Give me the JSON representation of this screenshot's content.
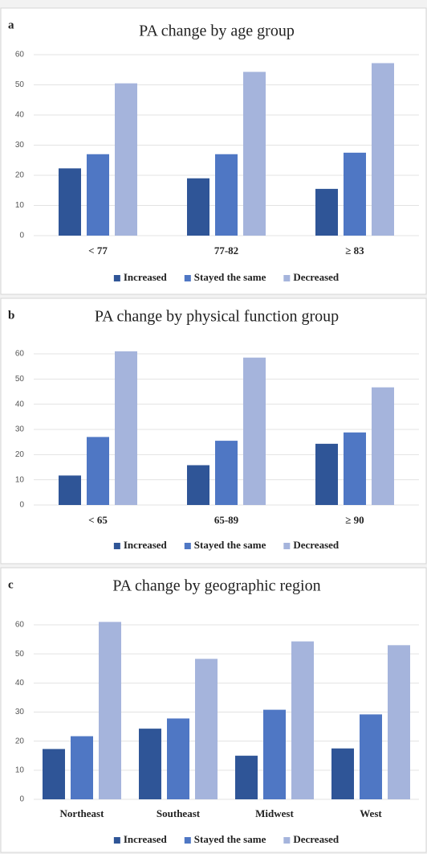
{
  "chart_data": [
    {
      "type": "bar",
      "panel_label": "a",
      "title": "PA change by age group",
      "categories": [
        "< 77",
        "77-82",
        "≥ 83"
      ],
      "series": [
        {
          "name": "Increased",
          "color": "#2f5597",
          "values": [
            22.3,
            19,
            15.5
          ]
        },
        {
          "name": "Stayed the same",
          "color": "#4f77c4",
          "values": [
            27,
            27,
            27.5
          ]
        },
        {
          "name": "Decreased",
          "color": "#a5b4dc",
          "values": [
            50.5,
            54.3,
            57.2
          ]
        }
      ],
      "ylim": [
        0,
        60
      ],
      "yticks": [
        0,
        10,
        20,
        30,
        40,
        50,
        60
      ],
      "legend": "bottom"
    },
    {
      "type": "bar",
      "panel_label": "b",
      "title": "PA change by physical function group",
      "categories": [
        "< 65",
        "65-89",
        "≥ 90"
      ],
      "series": [
        {
          "name": "Increased",
          "color": "#2f5597",
          "values": [
            11.7,
            15.8,
            24.3
          ]
        },
        {
          "name": "Stayed the same",
          "color": "#4f77c4",
          "values": [
            27,
            25.5,
            28.8
          ]
        },
        {
          "name": "Decreased",
          "color": "#a5b4dc",
          "values": [
            61,
            58.5,
            46.7
          ]
        }
      ],
      "ylim": [
        0,
        60
      ],
      "yticks": [
        0,
        10,
        20,
        30,
        40,
        50,
        60
      ],
      "legend": "bottom"
    },
    {
      "type": "bar",
      "panel_label": "c",
      "title": "PA change by geographic region",
      "categories": [
        "Northeast",
        "Southeast",
        "Midwest",
        "West"
      ],
      "series": [
        {
          "name": "Increased",
          "color": "#2f5597",
          "values": [
            17.3,
            24.3,
            15,
            17.5
          ]
        },
        {
          "name": "Stayed the same",
          "color": "#4f77c4",
          "values": [
            21.7,
            27.8,
            30.8,
            29.2
          ]
        },
        {
          "name": "Decreased",
          "color": "#a5b4dc",
          "values": [
            61,
            48.3,
            54.3,
            53
          ]
        }
      ],
      "ylim": [
        0,
        60
      ],
      "yticks": [
        0,
        10,
        20,
        30,
        40,
        50,
        60
      ],
      "legend": "bottom"
    }
  ]
}
